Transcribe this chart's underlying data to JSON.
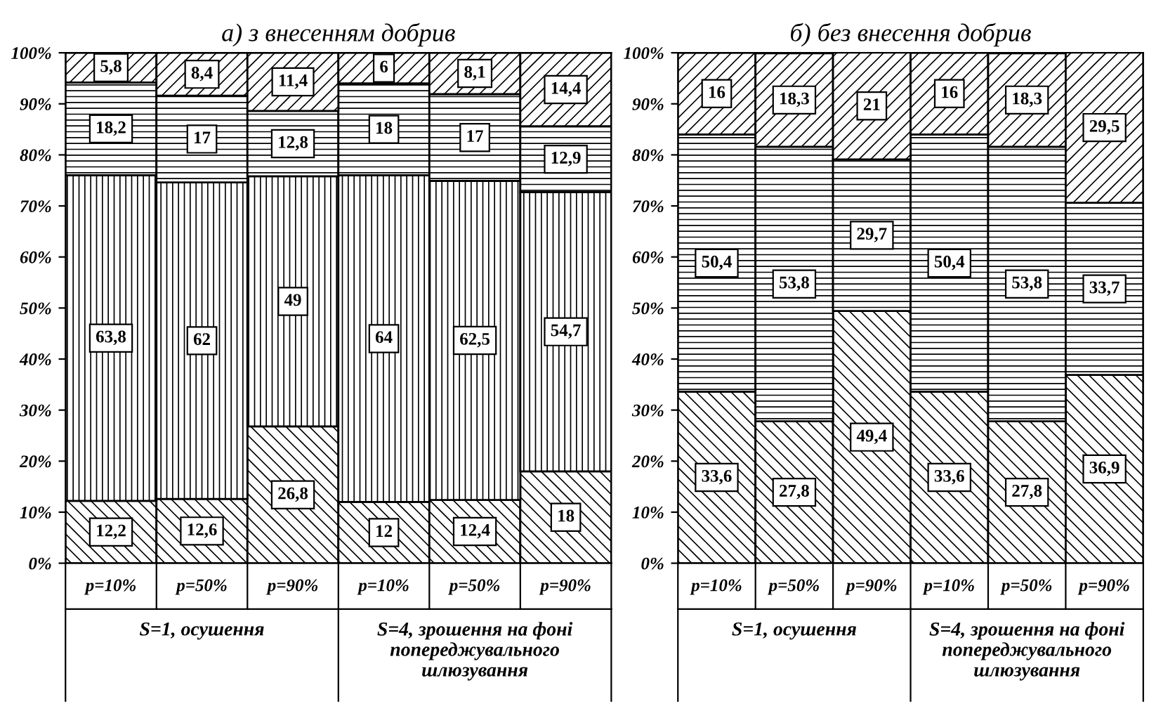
{
  "chart_data": [
    {
      "type": "bar",
      "stacked": true,
      "title": "а) з внесенням добрив",
      "categories": [
        "p=10%",
        "p=50%",
        "p=90%",
        "p=10%",
        "p=50%",
        "p=90%"
      ],
      "ylim": [
        0,
        100
      ],
      "yticks": [
        {
          "value": 0,
          "label": "0%"
        },
        {
          "value": 10,
          "label": "10%"
        },
        {
          "value": 20,
          "label": "20%"
        },
        {
          "value": 30,
          "label": "30%"
        },
        {
          "value": 40,
          "label": "40%"
        },
        {
          "value": 50,
          "label": "50%"
        },
        {
          "value": 60,
          "label": "60%"
        },
        {
          "value": 70,
          "label": "70%"
        },
        {
          "value": 80,
          "label": "80%"
        },
        {
          "value": 90,
          "label": "90%"
        },
        {
          "value": 100,
          "label": "100%"
        }
      ],
      "grid": false,
      "series": [
        {
          "color": "#000000",
          "values": [
            12.2,
            12.6,
            26.8,
            12,
            12.4,
            18
          ],
          "value_labels": [
            "12,2",
            "12,6",
            "26,8",
            "12",
            "12,4",
            "18"
          ]
        },
        {
          "color": "#000000",
          "values": [
            63.8,
            62,
            49,
            64,
            62.5,
            54.7
          ],
          "value_labels": [
            "63,8",
            "62",
            "49",
            "64",
            "62,5",
            "54,7"
          ]
        },
        {
          "color": "#000000",
          "values": [
            18.2,
            17,
            12.8,
            18,
            17,
            12.9
          ],
          "value_labels": [
            "18,2",
            "17",
            "12,8",
            "18",
            "17",
            "12,9"
          ]
        },
        {
          "color": "#000000",
          "values": [
            5.8,
            8.4,
            11.4,
            6,
            8.1,
            14.4
          ],
          "value_labels": [
            "5,8",
            "8,4",
            "11,4",
            "6",
            "8,1",
            "14,4"
          ]
        }
      ],
      "annotations": [
        "S=1, осушення",
        "S=4, зрошення на фоні попереджувального шлюзування"
      ]
    },
    {
      "type": "bar",
      "stacked": true,
      "title": "б) без внесення добрив",
      "categories": [
        "p=10%",
        "p=50%",
        "p=90%",
        "p=10%",
        "p=50%",
        "p=90%"
      ],
      "ylim": [
        0,
        100
      ],
      "yticks": [
        {
          "value": 0,
          "label": "0%"
        },
        {
          "value": 10,
          "label": "10%"
        },
        {
          "value": 20,
          "label": "20%"
        },
        {
          "value": 30,
          "label": "30%"
        },
        {
          "value": 40,
          "label": "40%"
        },
        {
          "value": 50,
          "label": "50%"
        },
        {
          "value": 60,
          "label": "60%"
        },
        {
          "value": 70,
          "label": "70%"
        },
        {
          "value": 80,
          "label": "80%"
        },
        {
          "value": 90,
          "label": "90%"
        },
        {
          "value": 100,
          "label": "100%"
        }
      ],
      "grid": false,
      "series": [
        {
          "color": "#000000",
          "values": [
            33.6,
            27.8,
            49.4,
            33.6,
            27.8,
            36.9
          ],
          "value_labels": [
            "33,6",
            "27,8",
            "49,4",
            "33,6",
            "27,8",
            "36,9"
          ]
        },
        {
          "color": "#000000",
          "values": [
            50.4,
            53.8,
            29.7,
            50.4,
            53.8,
            33.7
          ],
          "value_labels": [
            "50,4",
            "53,8",
            "29,7",
            "50,4",
            "53,8",
            "33,7"
          ]
        },
        {
          "color": "#000000",
          "values": [
            16,
            18.3,
            21,
            16,
            18.3,
            29.5
          ],
          "value_labels": [
            "16",
            "18,3",
            "21",
            "16",
            "18,3",
            "29,5"
          ]
        }
      ],
      "annotations": [
        "S=1, осушення",
        "S=4, зрошення на фоні попереджувального шлюзування"
      ]
    }
  ]
}
